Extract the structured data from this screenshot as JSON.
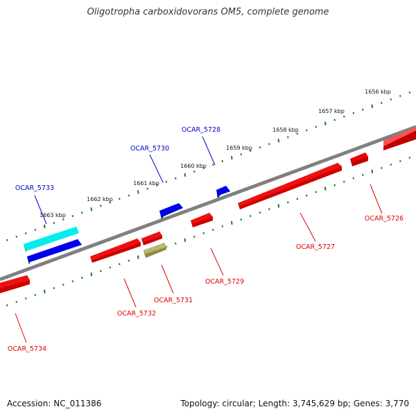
{
  "title": "Oligotropha carboxidovorans OM5, complete genome",
  "footer": {
    "accession": "Accession: NC_011386",
    "topology": "Topology: circular; Length: 3,745,629 bp; Genes: 3,770"
  },
  "colors": {
    "backbone": "#808080",
    "tick": "#1a7a1a",
    "forward_gene": "#0000ee",
    "reverse_gene": "#ee0000",
    "cyan_gene": "#00eeee",
    "olive_gene": "#bdb76b",
    "forward_label": "#0000cc",
    "reverse_label": "#dd0000"
  },
  "kbp_labels": [
    "1656 kbp",
    "1657 kbp",
    "1658 kbp",
    "1659 kbp",
    "1660 kbp",
    "1661 kbp",
    "1662 kbp",
    "1663 kbp"
  ],
  "genes": [
    {
      "label": "OCAR_5726",
      "strand": "reverse"
    },
    {
      "label": "OCAR_5727",
      "strand": "reverse"
    },
    {
      "label": "OCAR_5728",
      "strand": "forward"
    },
    {
      "label": "OCAR_5729",
      "strand": "reverse"
    },
    {
      "label": "OCAR_5730",
      "strand": "forward"
    },
    {
      "label": "OCAR_5731",
      "strand": "reverse"
    },
    {
      "label": "OCAR_5732",
      "strand": "reverse"
    },
    {
      "label": "OCAR_5733",
      "strand": "forward"
    },
    {
      "label": "OCAR_5734",
      "strand": "reverse"
    }
  ]
}
